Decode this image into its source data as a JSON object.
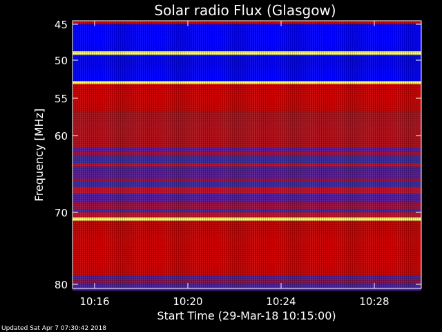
{
  "chart_data": {
    "type": "heatmap",
    "title": "Solar radio Flux (Glasgow)",
    "xlabel": "Start Time (29-Mar-18 10:15:00)",
    "ylabel": "Frequency [MHz]",
    "x_ticks": [
      "10:16",
      "10:20",
      "10:24",
      "10:28"
    ],
    "y_ticks": [
      "45",
      "50",
      "55",
      "60",
      "70",
      "80"
    ],
    "colors": {
      "background": "#000000",
      "low": "#0000ff",
      "mid": "#cc0000",
      "high": "#ffff66",
      "plot_bg": "#3a1a8a"
    },
    "bands": [
      {
        "from": 44.5,
        "to": 45.0,
        "level": "mid"
      },
      {
        "from": 45.0,
        "to": 48.7,
        "level": "low"
      },
      {
        "from": 48.7,
        "to": 49.2,
        "level": "high"
      },
      {
        "from": 49.2,
        "to": 52.8,
        "level": "low"
      },
      {
        "from": 52.8,
        "to": 53.2,
        "level": "high"
      },
      {
        "from": 53.2,
        "to": 57.0,
        "level": "mid"
      },
      {
        "from": 57.0,
        "to": 62.0,
        "level": "mid-low"
      },
      {
        "from": 62.0,
        "to": 66.0,
        "level": "mixed"
      },
      {
        "from": 66.0,
        "to": 71.5,
        "level": "mixed"
      },
      {
        "from": 71.5,
        "to": 72.0,
        "level": "high"
      },
      {
        "from": 72.0,
        "to": 79.5,
        "level": "mid"
      },
      {
        "from": 79.5,
        "to": 80.5,
        "level": "mixed"
      }
    ]
  },
  "footer": {
    "updated": "Updated Sat Apr  7 07:30:42 2018"
  }
}
